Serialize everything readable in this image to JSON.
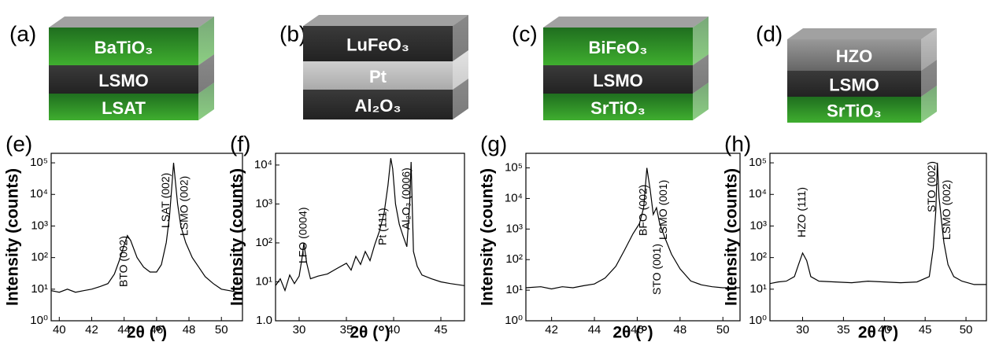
{
  "schematics": [
    {
      "label": "(a)",
      "layers": [
        "BaTiO₃",
        "LSMO",
        "LSAT"
      ]
    },
    {
      "label": "(b)",
      "layers": [
        "LuFeO₃",
        "Pt",
        "Al₂O₃"
      ]
    },
    {
      "label": "(c)",
      "layers": [
        "BiFeO₃",
        "LSMO",
        "SrTiO₃"
      ]
    },
    {
      "label": "(d)",
      "layers": [
        "HZO",
        "LSMO",
        "SrTiO₃"
      ]
    }
  ],
  "chart_data": [
    {
      "type": "line",
      "panel_label": "(e)",
      "xlabel": "2θ (°)",
      "ylabel": "Intensity (counts)",
      "log_y": true,
      "x": [
        39.5,
        40,
        40.5,
        41,
        41.5,
        42,
        42.5,
        43,
        43.4,
        43.7,
        44,
        44.2,
        44.4,
        44.8,
        45.2,
        45.6,
        46,
        46.3,
        46.6,
        46.8,
        46.95,
        47.05,
        47.15,
        47.3,
        47.5,
        47.8,
        48.2,
        48.6,
        49,
        49.5,
        50,
        50.5,
        51,
        51.3
      ],
      "series": [
        {
          "color": "#000000",
          "values": [
            9,
            8,
            10,
            8,
            9,
            10,
            12,
            15,
            30,
            80,
            250,
            500,
            350,
            100,
            50,
            35,
            35,
            60,
            300,
            2000,
            20000,
            100000,
            30000,
            5000,
            1000,
            300,
            100,
            50,
            25,
            15,
            10,
            9,
            8,
            8
          ]
        }
      ],
      "xlim": [
        39.5,
        51.3
      ],
      "xticks": [
        40,
        42,
        44,
        46,
        48,
        50
      ],
      "ylim": [
        1,
        200000
      ],
      "yticks": [
        {
          "value": 1,
          "label": "10⁰"
        },
        {
          "value": 10,
          "label": "10¹"
        },
        {
          "value": 100,
          "label": "10²"
        },
        {
          "value": 1000,
          "label": "10³"
        },
        {
          "value": 10000,
          "label": "10⁴"
        },
        {
          "value": 100000,
          "label": "10⁵"
        }
      ],
      "annotations": [
        "BTO (002)",
        "LSAT (002)",
        "LSMO (002)"
      ]
    },
    {
      "type": "line",
      "panel_label": "(f)",
      "xlabel": "2θ (°)",
      "ylabel": "Intensity (counts)",
      "log_y": true,
      "x": [
        27.5,
        28,
        28.5,
        29,
        29.5,
        30,
        30.3,
        30.5,
        30.8,
        31.2,
        32,
        33,
        34,
        35,
        35.5,
        36,
        36.5,
        37,
        37.5,
        38,
        38.5,
        39,
        39.4,
        39.7,
        39.9,
        40.2,
        40.6,
        41,
        41.4,
        41.7,
        41.85,
        42.1,
        42.5,
        43,
        44,
        45,
        46,
        47.5
      ],
      "series": [
        {
          "color": "#000000",
          "values": [
            8,
            12,
            6,
            15,
            9,
            14,
            40,
            100,
            30,
            12,
            14,
            16,
            22,
            30,
            20,
            45,
            28,
            60,
            35,
            90,
            200,
            600,
            3000,
            15000,
            8000,
            1000,
            300,
            150,
            80,
            1000,
            12000,
            60,
            25,
            15,
            12,
            10,
            9,
            8
          ]
        }
      ],
      "xlim": [
        27.5,
        47.5
      ],
      "xticks": [
        30,
        35,
        40,
        45
      ],
      "ylim": [
        1,
        20000
      ],
      "yticks": [
        {
          "value": 1,
          "label": "1.0"
        },
        {
          "value": 10,
          "label": "10¹"
        },
        {
          "value": 100,
          "label": "10²"
        },
        {
          "value": 1000,
          "label": "10³"
        },
        {
          "value": 10000,
          "label": "10⁴"
        }
      ],
      "annotations": [
        "LFO (0004)",
        "Pt (111)",
        "Al₂O₃ (0006)"
      ]
    },
    {
      "type": "line",
      "panel_label": "(g)",
      "xlabel": "2θ (°)",
      "ylabel": "Intensity (counts)",
      "log_y": true,
      "x": [
        40.8,
        41.5,
        42,
        42.5,
        43,
        43.5,
        44,
        44.5,
        45,
        45.4,
        45.8,
        46.1,
        46.3,
        46.45,
        46.6,
        46.75,
        46.9,
        47.05,
        47.3,
        47.6,
        48,
        48.5,
        49,
        49.5,
        50,
        50.8
      ],
      "series": [
        {
          "color": "#000000",
          "values": [
            12,
            13,
            11,
            13,
            12,
            14,
            16,
            25,
            60,
            200,
            700,
            1500,
            5000,
            100000,
            20000,
            3000,
            5000,
            1500,
            500,
            150,
            50,
            20,
            15,
            13,
            12,
            12
          ]
        }
      ],
      "xlim": [
        40.8,
        50.8
      ],
      "xticks": [
        42,
        44,
        46,
        48,
        50
      ],
      "ylim": [
        1,
        300000
      ],
      "yticks": [
        {
          "value": 1,
          "label": "10⁰"
        },
        {
          "value": 10,
          "label": "10¹"
        },
        {
          "value": 100,
          "label": "10²"
        },
        {
          "value": 1000,
          "label": "10³"
        },
        {
          "value": 10000,
          "label": "10⁴"
        },
        {
          "value": 100000,
          "label": "10⁵"
        }
      ],
      "annotations": [
        "BFO (002)",
        "LSMO (001)",
        "STO (001)"
      ]
    },
    {
      "type": "line",
      "panel_label": "(h)",
      "xlabel": "2θ (°)",
      "ylabel": "Intensity (counts)",
      "log_y": true,
      "x": [
        26,
        27,
        28,
        29,
        29.5,
        30,
        30.5,
        31,
        32,
        34,
        36,
        38,
        40,
        42,
        44,
        45.5,
        46,
        46.3,
        46.5,
        46.7,
        47,
        47.3,
        47.8,
        48.5,
        49.5,
        51,
        52.5
      ],
      "series": [
        {
          "color": "#000000",
          "values": [
            15,
            17,
            18,
            25,
            60,
            140,
            80,
            25,
            18,
            17,
            16,
            18,
            17,
            16,
            17,
            25,
            200,
            3000,
            100000,
            8000,
            1500,
            300,
            60,
            25,
            18,
            14,
            14
          ]
        }
      ],
      "xlim": [
        26,
        52.5
      ],
      "xticks": [
        30,
        35,
        40,
        45,
        50
      ],
      "ylim": [
        1,
        200000
      ],
      "yticks": [
        {
          "value": 1,
          "label": "10⁰"
        },
        {
          "value": 10,
          "label": "10¹"
        },
        {
          "value": 100,
          "label": "10²"
        },
        {
          "value": 1000,
          "label": "10³"
        },
        {
          "value": 10000,
          "label": "10⁴"
        },
        {
          "value": 100000,
          "label": "10⁵"
        }
      ],
      "annotations": [
        "HZO (111)",
        "STO (002)",
        "LSMO (002)"
      ]
    }
  ]
}
